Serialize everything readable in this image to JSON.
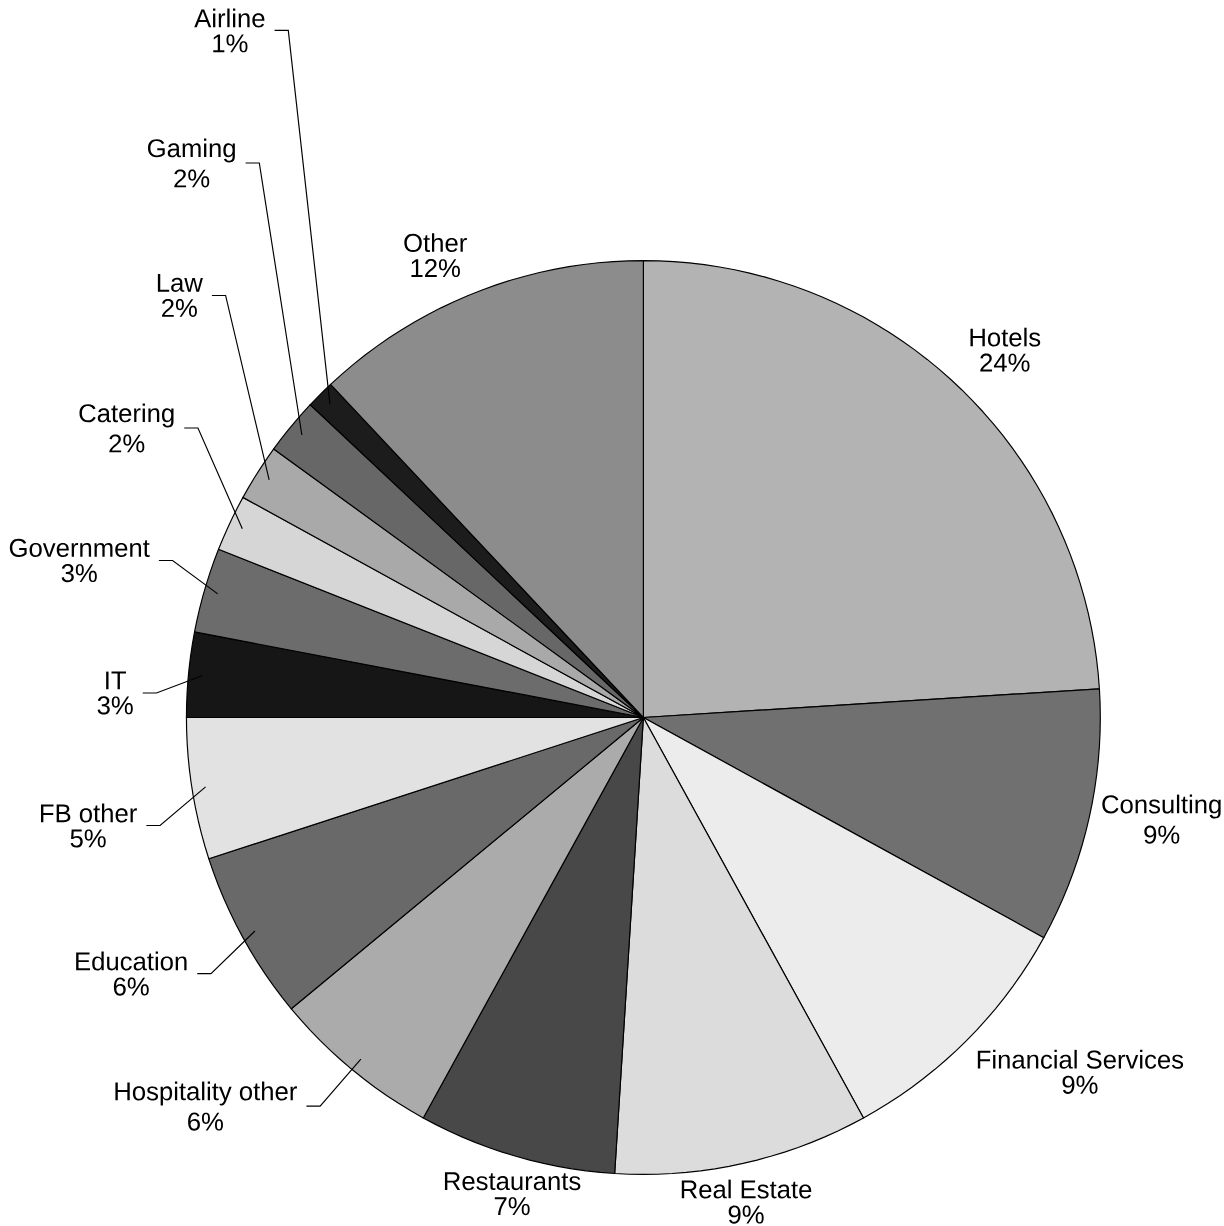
{
  "chart_data": {
    "type": "pie",
    "categories": [
      "Hotels",
      "Consulting",
      "Financial Services",
      "Real Estate",
      "Restaurants",
      "Hospitality other",
      "Education",
      "FB other",
      "IT",
      "Government",
      "Catering",
      "Law",
      "Gaming",
      "Airline",
      "Other"
    ],
    "values": [
      24,
      9,
      9,
      9,
      7,
      6,
      6,
      5,
      3,
      3,
      2,
      2,
      2,
      1,
      12
    ],
    "value_labels": [
      "24%",
      "9%",
      "9%",
      "9%",
      "7%",
      "6%",
      "6%",
      "5%",
      "3%",
      "3%",
      "2%",
      "2%",
      "2%",
      "1%",
      "12%"
    ],
    "colors": [
      "#b3b3b3",
      "#707070",
      "#ececec",
      "#dcdcdc",
      "#484848",
      "#ababab",
      "#696969",
      "#e2e2e2",
      "#161616",
      "#6c6c6c",
      "#d6d6d6",
      "#a9a9a9",
      "#676767",
      "#1c1c1c",
      "#8c8c8c"
    ]
  }
}
